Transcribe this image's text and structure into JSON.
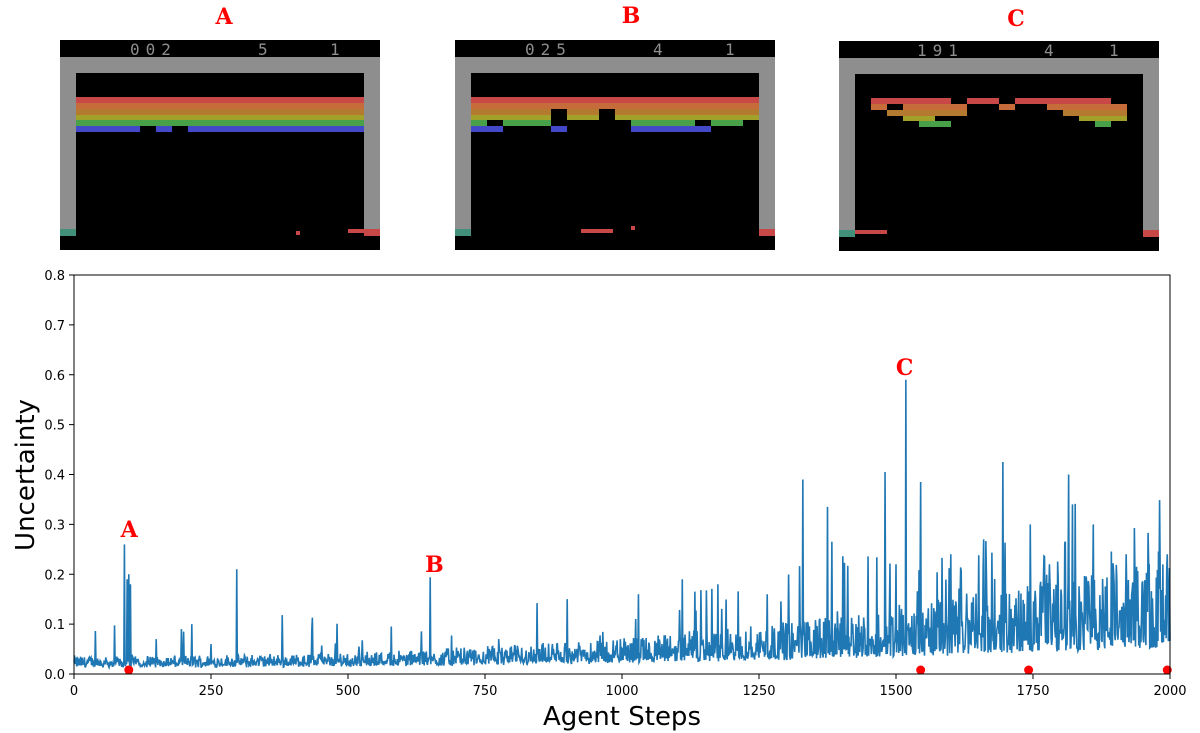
{
  "panels": [
    {
      "label": "A",
      "score": "002",
      "lives": "5",
      "player": "1"
    },
    {
      "label": "B",
      "score": "025",
      "lives": "4",
      "player": "1"
    },
    {
      "label": "C",
      "score": "191",
      "lives": "4",
      "player": "1"
    }
  ],
  "colors": {
    "line": "#1f77b4",
    "marker": "#ff0000",
    "annotation": "#ff0000",
    "wall": "#8e8e8e",
    "bricks": [
      "#c84848",
      "#c66c3a",
      "#b47a30",
      "#a2a22a",
      "#48a048",
      "#4248c8"
    ]
  },
  "chart_data": {
    "type": "line",
    "xlabel": "Agent Steps",
    "ylabel": "Uncertainty",
    "xlim": [
      0,
      2000
    ],
    "ylim": [
      0,
      0.8
    ],
    "xticks": [
      0,
      250,
      500,
      750,
      1000,
      1250,
      1500,
      1750,
      2000
    ],
    "yticks": [
      0.0,
      0.1,
      0.2,
      0.3,
      0.4,
      0.5,
      0.6,
      0.7,
      0.8
    ],
    "grid": false,
    "series": [
      {
        "values_note": "",
        "peaks": [
          [
            92,
            0.26
          ],
          [
            97,
            0.19
          ],
          [
            100,
            0.2
          ],
          [
            103,
            0.18
          ],
          [
            150,
            0.07
          ],
          [
            200,
            0.085
          ],
          [
            215,
            0.1
          ],
          [
            250,
            0.06
          ],
          [
            297,
            0.21
          ],
          [
            380,
            0.118
          ],
          [
            435,
            0.113
          ],
          [
            520,
            0.055
          ],
          [
            650,
            0.194
          ],
          [
            775,
            0.07
          ],
          [
            845,
            0.142
          ],
          [
            900,
            0.15
          ],
          [
            1030,
            0.16
          ],
          [
            1110,
            0.19
          ],
          [
            1175,
            0.18
          ],
          [
            1265,
            0.16
          ],
          [
            1330,
            0.39
          ],
          [
            1375,
            0.335
          ],
          [
            1480,
            0.405
          ],
          [
            1500,
            0.22
          ],
          [
            1518,
            0.59
          ],
          [
            1545,
            0.385
          ],
          [
            1600,
            0.24
          ],
          [
            1660,
            0.27
          ],
          [
            1695,
            0.425
          ],
          [
            1745,
            0.3
          ],
          [
            1780,
            0.22
          ],
          [
            1815,
            0.4
          ],
          [
            1822,
            0.34
          ],
          [
            1860,
            0.3
          ],
          [
            1920,
            0.24
          ],
          [
            1995,
            0.24
          ]
        ]
      }
    ],
    "markers": [
      [
        100,
        0.008
      ],
      [
        1545,
        0.008
      ],
      [
        1742,
        0.008
      ],
      [
        1995,
        0.008
      ]
    ],
    "annotations": [
      {
        "text": "A",
        "x": 97,
        "y": 0.275
      },
      {
        "text": "B",
        "x": 654,
        "y": 0.205
      },
      {
        "text": "C",
        "x": 1512,
        "y": 0.6
      }
    ]
  }
}
